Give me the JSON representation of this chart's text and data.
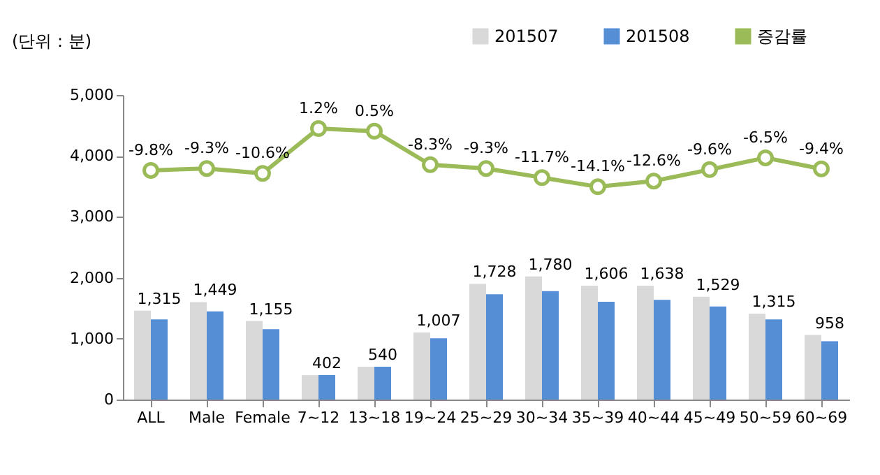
{
  "chart_data": {
    "type": "bar",
    "ylabel": "(단위 : 분)",
    "categories": [
      "ALL",
      "Male",
      "Female",
      "7~12",
      "13~18",
      "19~24",
      "25~29",
      "30~34",
      "35~39",
      "40~44",
      "45~49",
      "50~59",
      "60~69"
    ],
    "series": [
      {
        "name": "201507",
        "color": "#d9d9d9",
        "values": [
          1460,
          1600,
          1290,
          400,
          540,
          1100,
          1900,
          2020,
          1870,
          1870,
          1690,
          1410,
          1060
        ]
      },
      {
        "name": "201508",
        "color": "#558ed5",
        "values": [
          1315,
          1449,
          1155,
          402,
          540,
          1007,
          1728,
          1780,
          1606,
          1638,
          1529,
          1315,
          958
        ],
        "value_labels": [
          "1,315",
          "1,449",
          "1,155",
          "402",
          "540",
          "1,007",
          "1,728",
          "1,780",
          "1,606",
          "1,638",
          "1,529",
          "1,315",
          "958"
        ]
      },
      {
        "name": "증감률",
        "type": "line",
        "axis": "y2",
        "color": "#9bbb59",
        "marker": "circle",
        "values": [
          -9.8,
          -9.3,
          -10.6,
          1.2,
          0.5,
          -8.3,
          -9.3,
          -11.7,
          -14.1,
          -12.6,
          -9.6,
          -6.5,
          -9.4
        ],
        "value_labels": [
          "-9.8%",
          "-9.3%",
          "-10.6%",
          "1.2%",
          "0.5%",
          "-8.3%",
          "-9.3%",
          "-11.7%",
          "-14.1%",
          "-12.6%",
          "-9.6%",
          "-6.5%",
          "-9.4%"
        ]
      }
    ],
    "ylim": [
      0,
      5000
    ],
    "yticks": [
      {
        "value": 0,
        "label": "0"
      },
      {
        "value": 1000,
        "label": "1,000"
      },
      {
        "value": 2000,
        "label": "2,000"
      },
      {
        "value": 3000,
        "label": "3,000"
      },
      {
        "value": 4000,
        "label": "4,000"
      },
      {
        "value": 5000,
        "label": "5,000"
      }
    ],
    "y2lim": [
      -70,
      10
    ],
    "legend": "top right",
    "grid": false
  }
}
